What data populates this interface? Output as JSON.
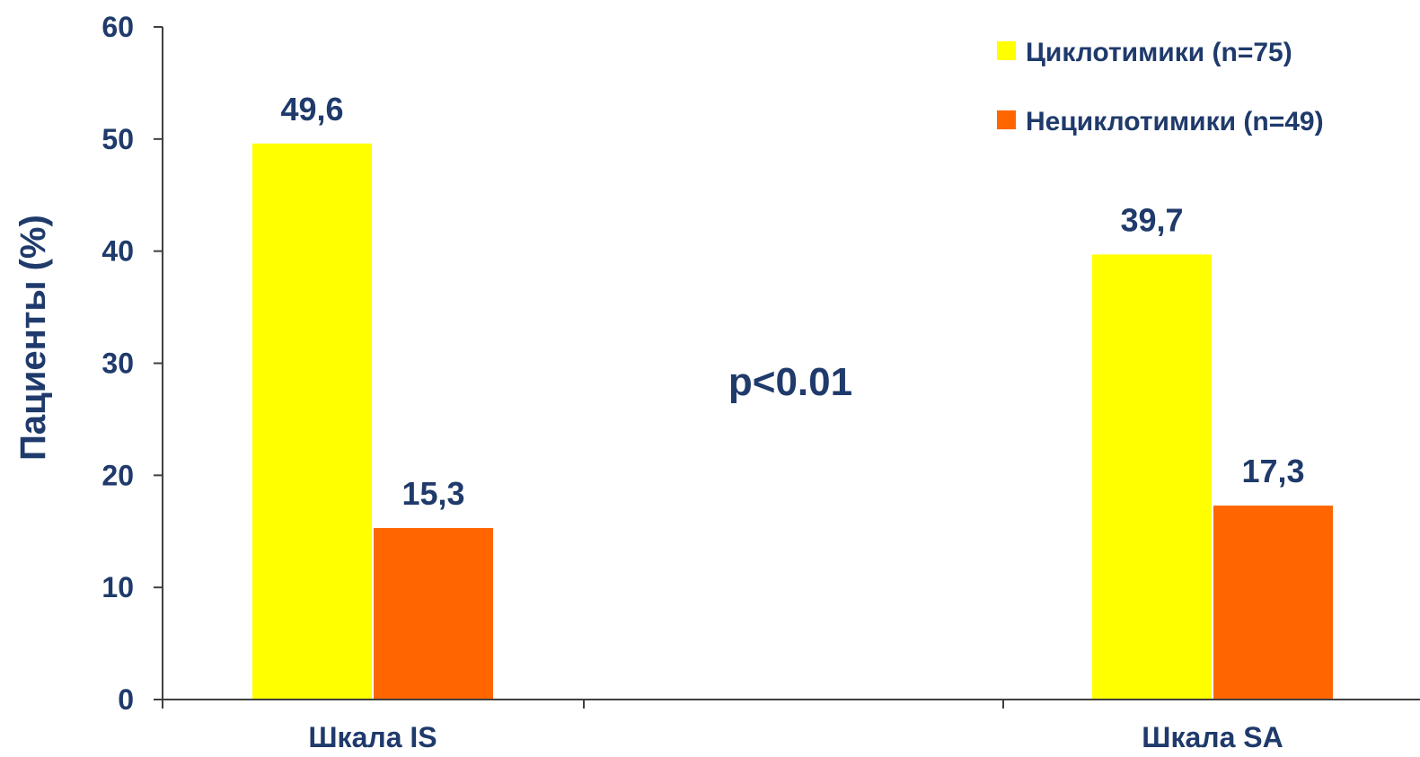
{
  "chart_data": {
    "type": "bar",
    "categories": [
      "Шкала IS",
      "Шкала SA"
    ],
    "series": [
      {
        "name": "Циклотимики (n=75)",
        "values": [
          49.6,
          39.7
        ],
        "color": "#ffff00"
      },
      {
        "name": "Нециклотимики (n=49)",
        "values": [
          15.3,
          17.3
        ],
        "color": "#ff6600"
      }
    ],
    "data_labels": [
      [
        "49,6",
        "39,7"
      ],
      [
        "15,3",
        "17,3"
      ]
    ],
    "ylabel": "Пациенты (%)",
    "xlabel": "",
    "ylim": [
      0,
      60
    ],
    "yticks": [
      "0",
      "10",
      "20",
      "30",
      "40",
      "50",
      "60"
    ],
    "annotation": "p<0.01",
    "legend_position": "top-right",
    "grid": false,
    "text_color": "#1f3a6b"
  }
}
